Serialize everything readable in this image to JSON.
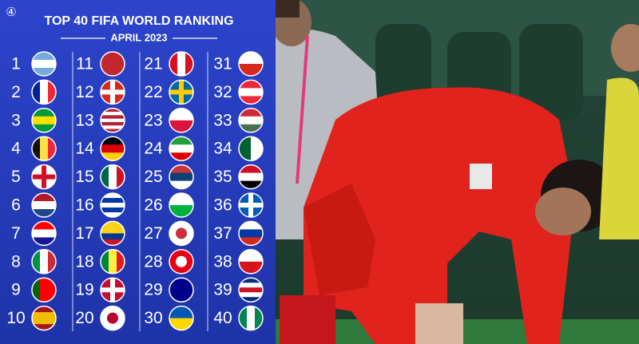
{
  "badge": "④",
  "header": {
    "title": "TOP 40 FIFA WORLD RANKING",
    "subtitle": "APRIL 2023"
  },
  "ranking": {
    "columns": [
      [
        1,
        2,
        3,
        4,
        5,
        6,
        7,
        8,
        9,
        10
      ],
      [
        11,
        12,
        13,
        14,
        15,
        16,
        17,
        18,
        19,
        20
      ],
      [
        21,
        22,
        23,
        24,
        25,
        26,
        27,
        28,
        29,
        30
      ],
      [
        31,
        32,
        33,
        34,
        35,
        36,
        37,
        38,
        39,
        40
      ]
    ]
  }
}
